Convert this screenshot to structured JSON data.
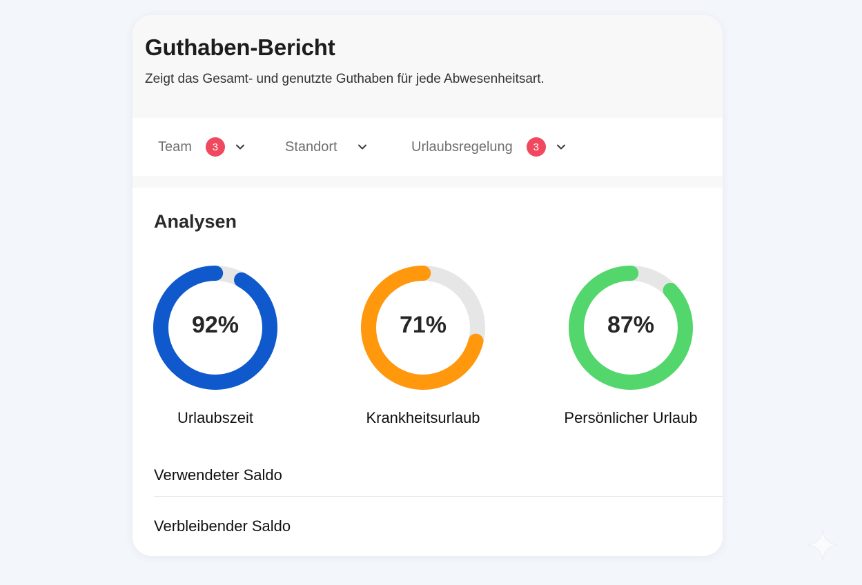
{
  "header": {
    "title": "Guthaben-Bericht",
    "subtitle": "Zeigt das Gesamt- und genutzte Guthaben für jede Abwesenheitsart."
  },
  "filters": [
    {
      "label": "Team",
      "badge": "3",
      "icon": "chevron-down-icon"
    },
    {
      "label": "Standort",
      "icon": "chevron-down-icon"
    },
    {
      "label": "Urlaubsregelung",
      "badge": "3",
      "icon": "chevron-down-icon"
    }
  ],
  "colors": {
    "badge": "#f0485e",
    "track": "#e6e6e6",
    "vacation": "#1059cc",
    "sick": "#ff980d",
    "personal": "#53d66b"
  },
  "analytics": {
    "title": "Analysen",
    "gauges": [
      {
        "value_text": "92%",
        "percent": 92,
        "label": "Urlaubszeit",
        "color": "#1059cc"
      },
      {
        "value_text": "71%",
        "percent": 71,
        "label": "Krankheitsurlaub",
        "color": "#ff980d"
      },
      {
        "value_text": "87%",
        "percent": 87,
        "label": "Persönlicher Urlaub",
        "color": "#53d66b"
      }
    ]
  },
  "balances": {
    "used_label": "Verwendeter Saldo",
    "remaining_label": "Verbleibender Saldo"
  }
}
